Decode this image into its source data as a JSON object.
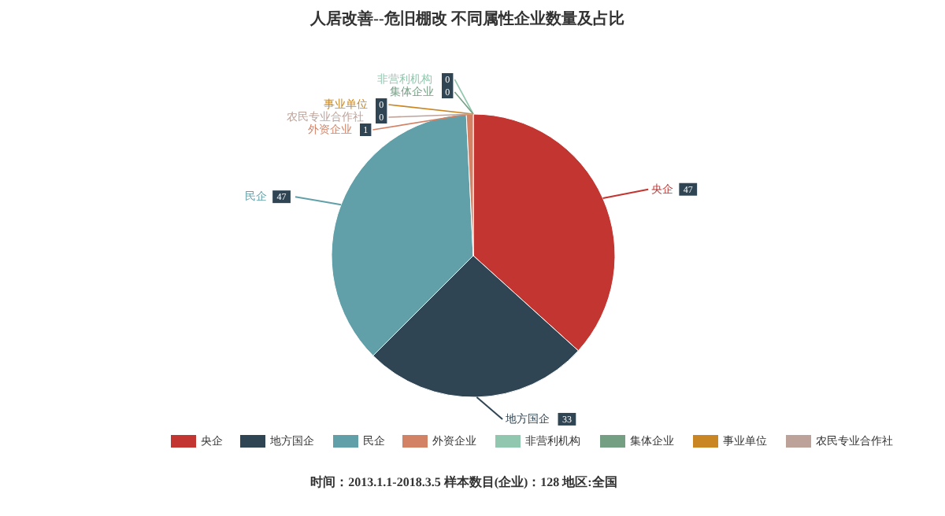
{
  "chart_data": {
    "type": "pie",
    "title": "人居改善--危旧棚改    不同属性企业数量及占比",
    "categories": [
      "央企",
      "地方国企",
      "民企",
      "外资企业",
      "非营利机构",
      "集体企业",
      "事业单位",
      "农民专业合作社"
    ],
    "values": [
      47,
      33,
      47,
      1,
      0,
      0,
      0,
      0
    ],
    "colors": [
      "#c23531",
      "#2f4554",
      "#61a0a8",
      "#d48265",
      "#91c7ae",
      "#749f83",
      "#ca8622",
      "#bda29a"
    ],
    "value_labels": [
      "47",
      "33",
      "47",
      "1",
      "0",
      "0",
      "0",
      "0"
    ],
    "legend": "bottom",
    "annotations": [
      "时间：2013.1.1-2018.3.5    样本数目(企业)：128    地区:全国"
    ]
  }
}
